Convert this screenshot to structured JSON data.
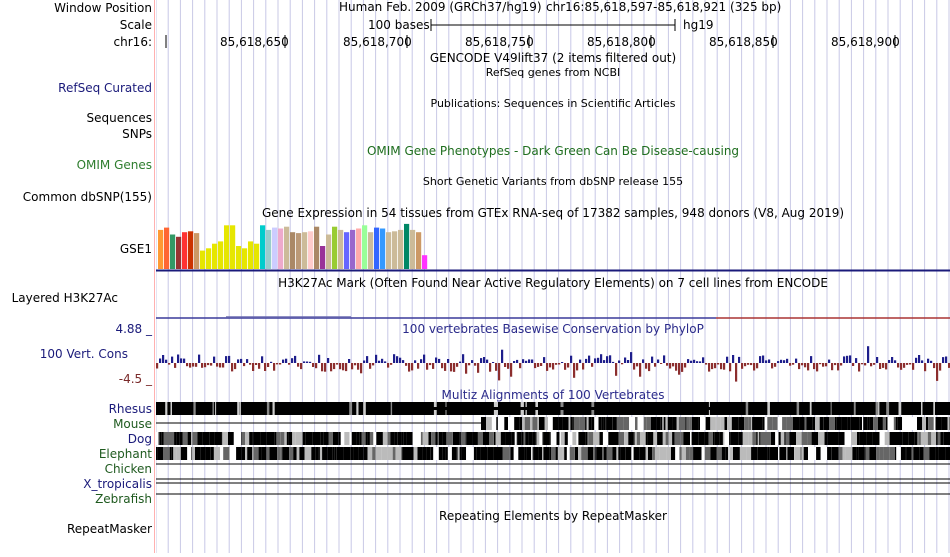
{
  "header": {
    "window_position_label": "Window Position",
    "scale_label": "Scale",
    "chrom_label": "chr16:",
    "assembly": "Human Feb. 2009 (GRCh37/hg19)",
    "position": "chr16:85,618,597-85,618,921 (325 bp)",
    "scale_text": "100 bases",
    "db": "hg19",
    "ticks": [
      "85,618,650",
      "85,618,700",
      "85,618,750",
      "85,618,800",
      "85,618,850",
      "85,618,900"
    ]
  },
  "tracks": {
    "gencode_title": "GENCODE V49lift37 (2 items filtered out)",
    "refseq_label": "RefSeq Curated",
    "refseq_title": "RefSeq genes from NCBI",
    "sequences_label": "Sequences",
    "publications_title": "Publications: Sequences in Scientific Articles",
    "snps_label": "SNPs",
    "omim_label": "OMIM Genes",
    "omim_title": "OMIM Gene Phenotypes - Dark Green Can Be Disease-causing",
    "dbsnp_label": "Common dbSNP(155)",
    "dbsnp_title": "Short Genetic Variants from dbSNP release 155",
    "gtex_title": "Gene Expression in 54 tissues from GTEx RNA-seq of 17382 samples, 948 donors (V8, Aug 2019)",
    "gse1_label": "GSE1",
    "h3k27ac_title": "H3K27Ac Mark (Often Found Near Active Regulatory Elements) on 7 cell lines from ENCODE",
    "h3k27ac_label": "Layered H3K27Ac",
    "phylop_max": "4.88 _",
    "phylop_min": "-4.5 _",
    "phylop_title": "100 vertebrates Basewise Conservation by PhyloP",
    "cons_label": "100 Vert. Cons",
    "multiz_title": "Multiz Alignments of 100 Vertebrates",
    "species": [
      "Rhesus",
      "Mouse",
      "Dog",
      "Elephant",
      "Chicken",
      "X_tropicalis",
      "Zebrafish"
    ],
    "repeat_title": "Repeating Elements by RepeatMasker",
    "repeat_label": "RepeatMasker"
  },
  "gtex_colors": [
    "#ff9933",
    "#ff6633",
    "#339966",
    "#993333",
    "#ff3333",
    "#cc3300",
    "#cc9966",
    "#e6e600",
    "#e6e600",
    "#e6e600",
    "#e6e600",
    "#e6e600",
    "#e6e600",
    "#e6e600",
    "#e6e600",
    "#e6e600",
    "#e6e600",
    "#00cccc",
    "#99cccc",
    "#ccccff",
    "#eeaacc",
    "#ccbb99",
    "#aa8866",
    "#bb9977",
    "#ccbb99",
    "#ffcccc",
    "#aa8866",
    "#993399",
    "#ccbb99",
    "#99cc33",
    "#ccbb99",
    "#6666ff",
    "#9966cc",
    "#ffaaaa",
    "#99ff99",
    "#ccbb99",
    "#3366ff",
    "#3399ff",
    "#ccbb99",
    "#ccbb99",
    "#ccbb99",
    "#008866",
    "#ccbb99",
    "#cc9966",
    "#ff33ff"
  ],
  "gtex_levels": [
    0.85,
    0.9,
    0.75,
    0.7,
    0.8,
    0.82,
    0.78,
    0.4,
    0.45,
    0.55,
    0.6,
    0.95,
    0.95,
    0.5,
    0.45,
    0.6,
    0.55,
    0.95,
    0.85,
    0.9,
    0.88,
    0.92,
    0.8,
    0.78,
    0.8,
    0.82,
    0.92,
    0.5,
    0.75,
    0.92,
    0.85,
    0.8,
    0.85,
    0.88,
    0.95,
    0.8,
    0.9,
    0.88,
    0.8,
    0.82,
    0.85,
    0.98,
    0.85,
    0.8,
    0.3
  ],
  "colors": {
    "blue_label": "#1a1a7a",
    "green_label": "#1f5a1f",
    "phylop_pos": "#1e1e8c",
    "phylop_neg": "#8c2e2e",
    "grid": "#c8c8e6"
  }
}
